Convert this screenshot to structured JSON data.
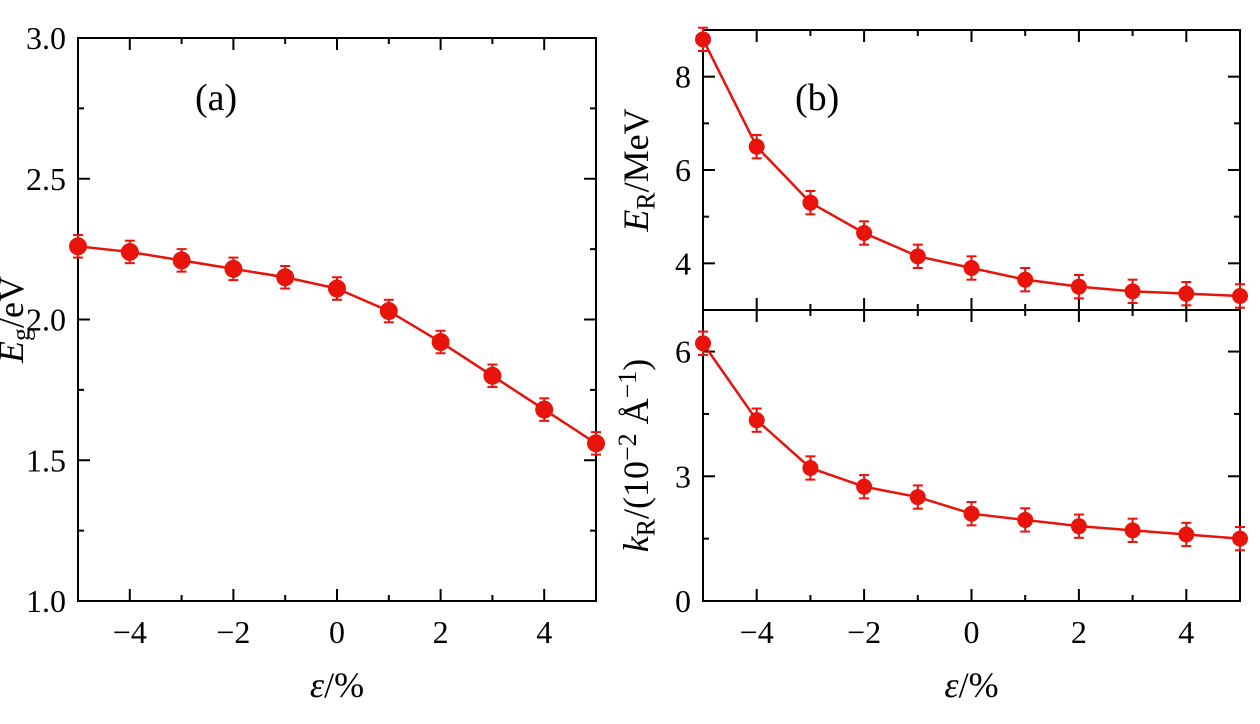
{
  "figure": {
    "background": "#ffffff",
    "axis_color": "#000000",
    "accent_color": "#e8130b"
  },
  "chart_data": [
    {
      "id": "panel-a",
      "type": "line",
      "panel_label": "(a)",
      "xlabel_segments": [
        {
          "t": "ε",
          "i": true
        },
        {
          "t": "/%"
        }
      ],
      "ylabel_segments": [
        {
          "t": "E",
          "i": true
        },
        {
          "t": "g",
          "pos": "sub"
        },
        {
          "t": "/eV"
        }
      ],
      "x": [
        -5,
        -4,
        -3,
        -2,
        -1,
        0,
        1,
        2,
        3,
        4,
        5
      ],
      "y": [
        2.26,
        2.24,
        2.21,
        2.18,
        2.15,
        2.11,
        2.03,
        1.92,
        1.8,
        1.68,
        1.56
      ],
      "yerr": 0.04,
      "xlim": [
        -5,
        5
      ],
      "ylim": [
        1.0,
        3.0
      ],
      "xticks": [
        -4,
        -2,
        0,
        2,
        4
      ],
      "xtick_labels": [
        "−4",
        "−2",
        "0",
        "2",
        "4"
      ],
      "xticks_minor": [
        -3,
        -1,
        1,
        3
      ],
      "yticks": [
        1.0,
        1.5,
        2.0,
        2.5,
        3.0
      ],
      "ytick_labels": [
        "1.0",
        "1.5",
        "2.0",
        "2.5",
        "3.0"
      ],
      "yticks_minor": [
        1.25,
        1.75,
        2.25,
        2.75
      ],
      "show_xtick_labels": true,
      "show_xlabel": true
    },
    {
      "id": "panel-b-top",
      "type": "line",
      "panel_label": "(b)",
      "xlabel_segments": [],
      "ylabel_segments": [
        {
          "t": "E",
          "i": true
        },
        {
          "t": "R",
          "pos": "sub"
        },
        {
          "t": "/MeV"
        }
      ],
      "x": [
        -5,
        -4,
        -3,
        -2,
        -1,
        0,
        1,
        2,
        3,
        4,
        5
      ],
      "y": [
        8.8,
        6.5,
        5.3,
        4.65,
        4.15,
        3.9,
        3.65,
        3.5,
        3.4,
        3.35,
        3.3
      ],
      "yerr": 0.25,
      "xlim": [
        -5,
        5
      ],
      "ylim": [
        3,
        9
      ],
      "xticks": [
        -4,
        -2,
        0,
        2,
        4
      ],
      "xtick_labels": [
        "−4",
        "−2",
        "0",
        "2",
        "4"
      ],
      "xticks_minor": [
        -3,
        -1,
        1,
        3
      ],
      "yticks": [
        4,
        6,
        8
      ],
      "ytick_labels": [
        "4",
        "6",
        "8"
      ],
      "yticks_minor": [
        5,
        7
      ],
      "show_xtick_labels": false,
      "show_xlabel": false
    },
    {
      "id": "panel-b-bottom",
      "type": "line",
      "panel_label": null,
      "xlabel_segments": [
        {
          "t": "ε",
          "i": true
        },
        {
          "t": "/%"
        }
      ],
      "ylabel_segments": [
        {
          "t": "k",
          "i": true
        },
        {
          "t": "R",
          "pos": "sub"
        },
        {
          "t": "/(10"
        },
        {
          "t": "−2",
          "pos": "sup"
        },
        {
          "t": " Å"
        },
        {
          "t": "−1",
          "pos": "sup"
        },
        {
          "t": ")"
        }
      ],
      "x": [
        -5,
        -4,
        -3,
        -2,
        -1,
        0,
        1,
        2,
        3,
        4,
        5
      ],
      "y": [
        6.2,
        4.35,
        3.2,
        2.75,
        2.5,
        2.1,
        1.95,
        1.8,
        1.7,
        1.6,
        1.5
      ],
      "yerr": 0.28,
      "xlim": [
        -5,
        5
      ],
      "ylim": [
        0,
        7
      ],
      "xticks": [
        -4,
        -2,
        0,
        2,
        4
      ],
      "xtick_labels": [
        "−4",
        "−2",
        "0",
        "2",
        "4"
      ],
      "xticks_minor": [
        -3,
        -1,
        1,
        3
      ],
      "yticks": [
        0,
        3,
        6
      ],
      "ytick_labels": [
        "0",
        "3",
        "6"
      ],
      "yticks_minor": [
        1.5,
        4.5
      ],
      "show_xtick_labels": true,
      "show_xlabel": true
    }
  ]
}
